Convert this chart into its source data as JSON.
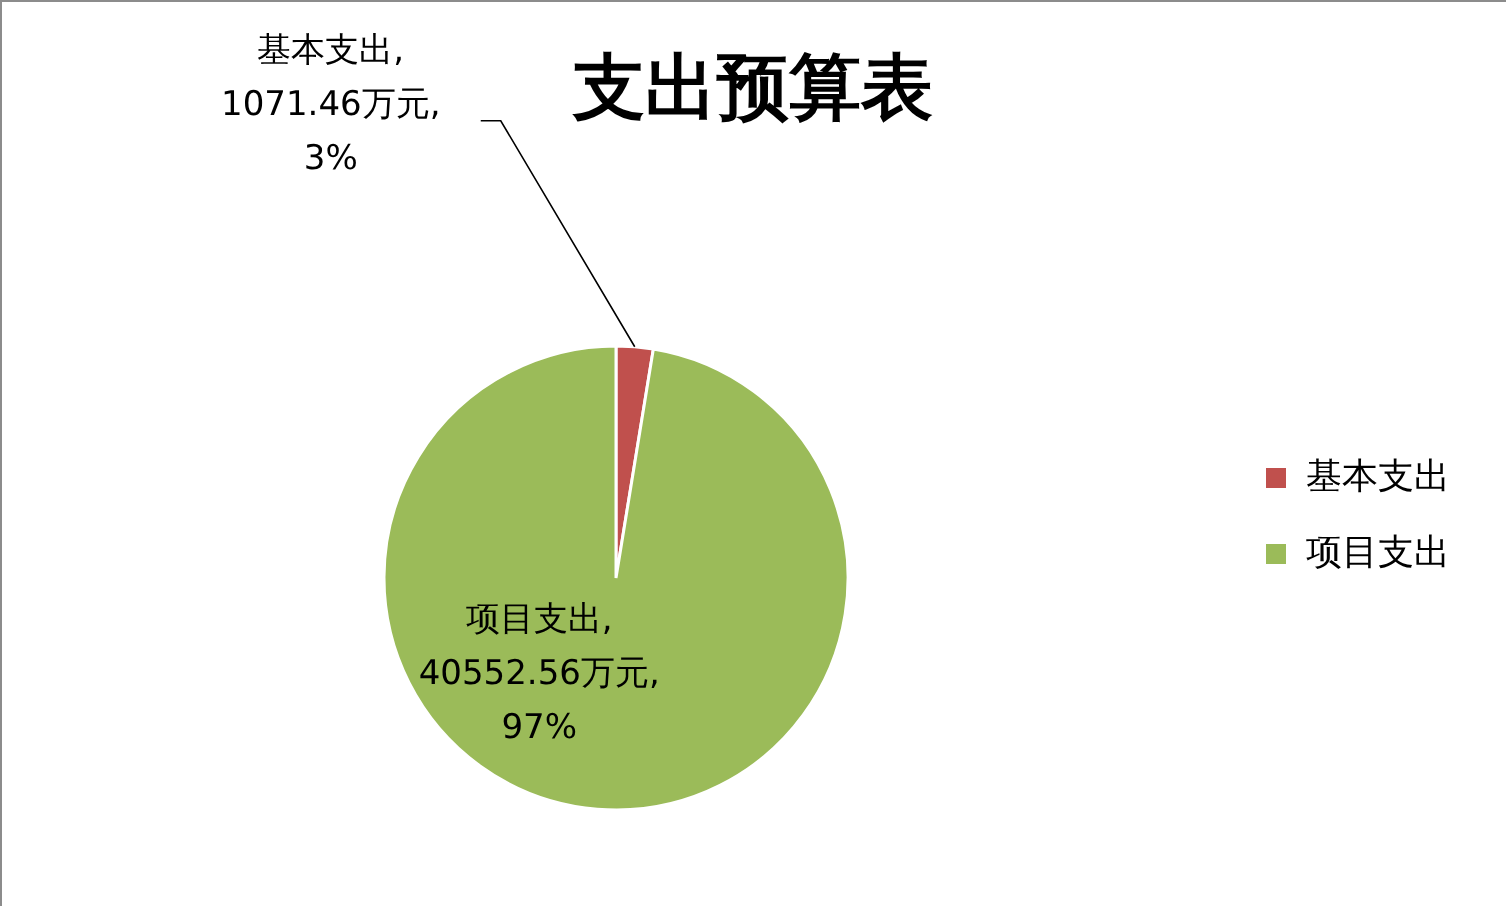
{
  "chart_data": {
    "type": "pie",
    "title": "支出预算表",
    "categories": [
      "基本支出",
      "项目支出"
    ],
    "values": [
      1071.46,
      40552.56
    ],
    "colors": [
      "#c0504d",
      "#9bbb59"
    ],
    "value_labels": [
      "基本支出,\n1071.46万元,\n3%",
      "项目支出,\n40552.56万元,\n97%"
    ],
    "legend": "right"
  }
}
